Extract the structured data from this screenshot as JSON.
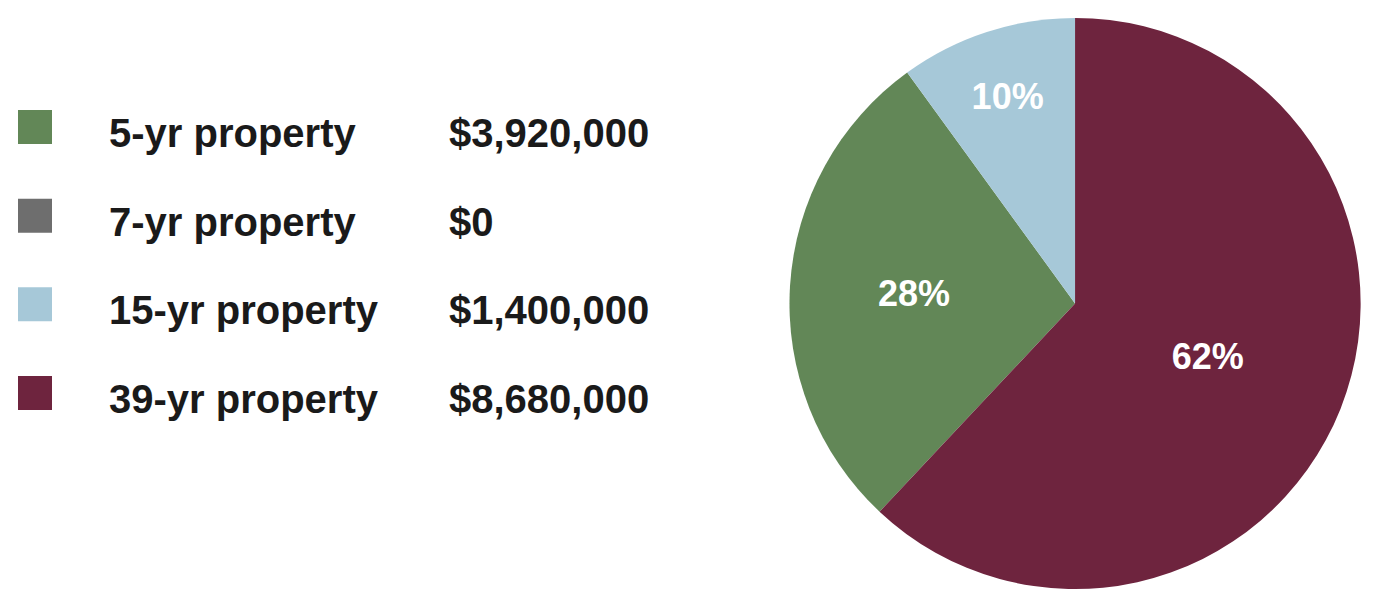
{
  "chart_data": {
    "type": "pie",
    "categories": [
      "5-yr property",
      "7-yr property",
      "15-yr property",
      "39-yr property"
    ],
    "values": [
      28,
      0,
      10,
      62
    ],
    "value_labels": [
      "28%",
      null,
      "10%",
      "62%"
    ],
    "amounts": [
      3920000,
      0,
      1400000,
      8680000
    ],
    "amount_labels": [
      "$3,920,000",
      "$0",
      "$1,400,000",
      "$8,680,000"
    ],
    "colors": [
      "#628757",
      "#6e6e6e",
      "#a6c8d8",
      "#6e243e"
    ],
    "data_labels": true,
    "legend": "left"
  }
}
